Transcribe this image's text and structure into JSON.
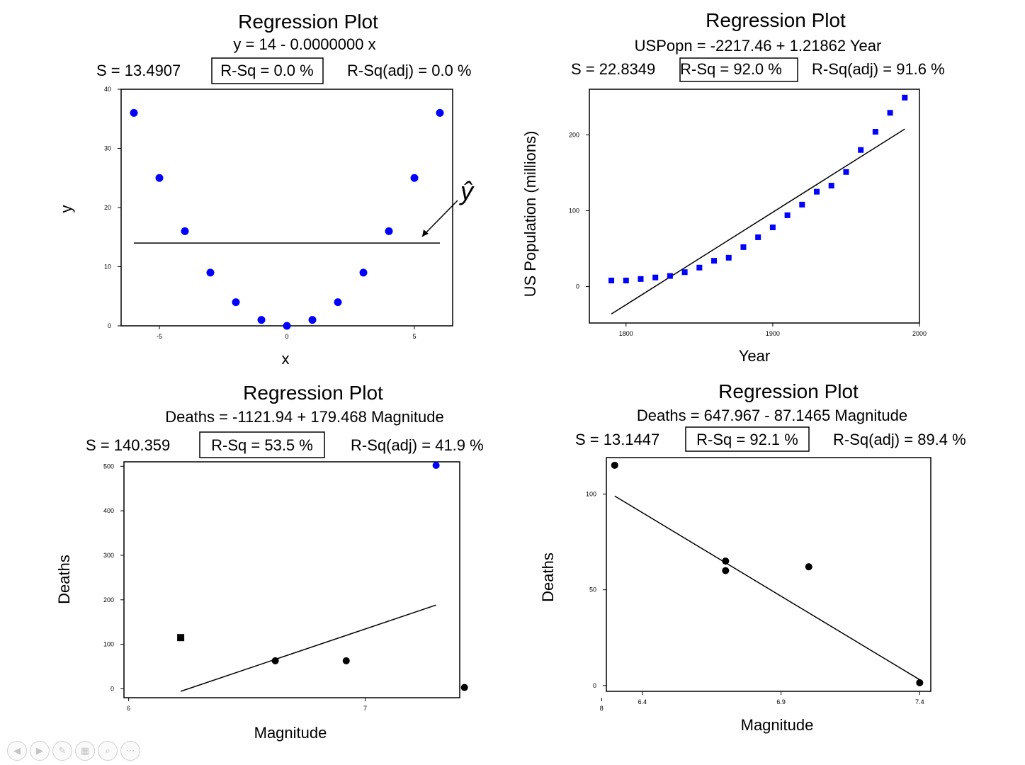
{
  "charts": [
    {
      "title": "Regression Plot",
      "equation": "y = 14 - 0.0000000 x",
      "s": "S = 13.4907",
      "rsq": "R-Sq = 0.0 %",
      "rsq_adj": "R-Sq(adj) = 0.0 %",
      "xlabel": "x",
      "ylabel": "y",
      "annotation": "ŷ"
    },
    {
      "title": "Regression Plot",
      "equation": "USPopn = -2217.46 + 1.21862  Year",
      "s": "S = 22.8349",
      "rsq": "R-Sq = 92.0  %",
      "rsq_adj": "R-Sq(adj) = 91.6  %",
      "xlabel": "Year",
      "ylabel": "US Population (millions)"
    },
    {
      "title": "Regression Plot",
      "equation": "Deaths = -1121.94 + 179.468 Magnitude",
      "s": "S = 140.359",
      "rsq": "R-Sq = 53.5 %",
      "rsq_adj": "R-Sq(adj) = 41.9 %",
      "xlabel": "Magnitude",
      "ylabel": "Deaths"
    },
    {
      "title": "Regression Plot",
      "equation": "Deaths = 647.967 - 87.1465 Magnitude",
      "s": "S = 13.1447",
      "rsq": "R-Sq = 92.1 %",
      "rsq_adj": "R-Sq(adj) = 89.4 %",
      "xlabel": "Magnitude",
      "ylabel": "Deaths"
    }
  ],
  "chart_data": [
    {
      "type": "scatter",
      "title": "Regression Plot",
      "xlabel": "x",
      "ylabel": "y",
      "xlim": [
        -6.5,
        6.5
      ],
      "ylim": [
        0,
        40
      ],
      "xticks": [
        -5,
        0,
        5
      ],
      "yticks": [
        0,
        10,
        20,
        30,
        40
      ],
      "points": [
        [
          -6,
          36
        ],
        [
          -5,
          25
        ],
        [
          -4,
          16
        ],
        [
          -3,
          9
        ],
        [
          -2,
          4
        ],
        [
          -1,
          1
        ],
        [
          0,
          0
        ],
        [
          1,
          1
        ],
        [
          2,
          4
        ],
        [
          3,
          9
        ],
        [
          4,
          16
        ],
        [
          5,
          25
        ],
        [
          6,
          36
        ]
      ],
      "point_color": "#0000ff",
      "fit_line": {
        "intercept": 14,
        "slope": 0,
        "x": [
          -6,
          6
        ]
      }
    },
    {
      "type": "scatter",
      "title": "Regression Plot",
      "xlabel": "Year",
      "ylabel": "US Population (millions)",
      "xlim": [
        1775,
        2000
      ],
      "ylim": [
        -48,
        260
      ],
      "xticks": [
        1800,
        1900,
        2000
      ],
      "yticks": [
        0,
        100,
        200
      ],
      "points": [
        [
          1790,
          8
        ],
        [
          1800,
          8
        ],
        [
          1810,
          10
        ],
        [
          1820,
          12
        ],
        [
          1830,
          14
        ],
        [
          1840,
          19
        ],
        [
          1850,
          25
        ],
        [
          1860,
          34
        ],
        [
          1870,
          38
        ],
        [
          1880,
          52
        ],
        [
          1890,
          65
        ],
        [
          1900,
          78
        ],
        [
          1910,
          94
        ],
        [
          1920,
          108
        ],
        [
          1930,
          125
        ],
        [
          1940,
          133
        ],
        [
          1950,
          151
        ],
        [
          1960,
          180
        ],
        [
          1970,
          204
        ],
        [
          1980,
          229
        ],
        [
          1990,
          249
        ]
      ],
      "point_color": "#0000ff",
      "fit_line": {
        "intercept": -2217.46,
        "slope": 1.21862,
        "x": [
          1790,
          1990
        ]
      }
    },
    {
      "type": "scatter",
      "title": "Regression Plot",
      "xlabel": "Magnitude",
      "ylabel": "Deaths",
      "xlim": [
        5.98,
        7.4
      ],
      "ylim": [
        -20,
        510
      ],
      "xticks": [
        6,
        7,
        8
      ],
      "yticks": [
        0,
        100,
        200,
        300,
        400,
        500
      ],
      "points": [
        [
          6.22,
          115
        ],
        [
          6.62,
          63
        ],
        [
          6.92,
          63
        ],
        [
          7.42,
          3
        ],
        [
          7.3,
          502
        ]
      ],
      "point_colors": [
        "#000000",
        "#000000",
        "#000000",
        "#000000",
        "#0000ff"
      ],
      "fit_line": {
        "intercept": -1121.94,
        "slope": 179.468,
        "x": [
          6.22,
          7.3
        ]
      }
    },
    {
      "type": "scatter",
      "title": "Regression Plot",
      "xlabel": "Magnitude",
      "ylabel": "Deaths",
      "xlim": [
        6.27,
        7.44
      ],
      "ylim": [
        -3,
        119
      ],
      "xticks": [
        6.4,
        6.9,
        7.4
      ],
      "yticks": [
        0,
        50,
        100
      ],
      "points": [
        [
          6.3,
          115
        ],
        [
          6.7,
          65
        ],
        [
          6.7,
          60
        ],
        [
          7.0,
          62
        ],
        [
          7.4,
          1.5
        ]
      ],
      "point_color": "#000000",
      "fit_line": {
        "intercept": 647.967,
        "slope": -87.1465,
        "x": [
          6.3,
          7.4
        ]
      }
    }
  ],
  "nav": {
    "prev_icon": "◀",
    "next_icon": "▶",
    "pen_icon": "✎",
    "slides_icon": "▦",
    "zoom_icon": "⌕",
    "more_icon": "⋯"
  }
}
